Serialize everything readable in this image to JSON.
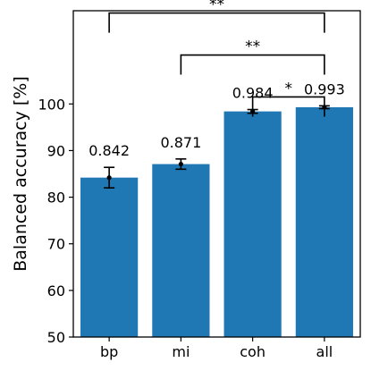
{
  "chart_data": {
    "type": "bar",
    "categories": [
      "bp",
      "mi",
      "coh",
      "all"
    ],
    "values": [
      84.2,
      87.1,
      98.4,
      99.3
    ],
    "errors": [
      2.2,
      1.1,
      0.4,
      0.3
    ],
    "data_labels": [
      "0.842",
      "0.871",
      "0.984",
      "0.993"
    ],
    "ylabel": "Balanced accuracy [%]",
    "ylim": [
      50,
      120
    ],
    "yticks": [
      50,
      60,
      70,
      80,
      90,
      100
    ],
    "bar_color": "#1f77b4",
    "grid": false,
    "significance": [
      {
        "from": "coh",
        "to": "all",
        "label": "*"
      },
      {
        "from": "mi",
        "to": "all",
        "label": "**"
      },
      {
        "from": "bp",
        "to": "all",
        "label": "**"
      }
    ]
  }
}
